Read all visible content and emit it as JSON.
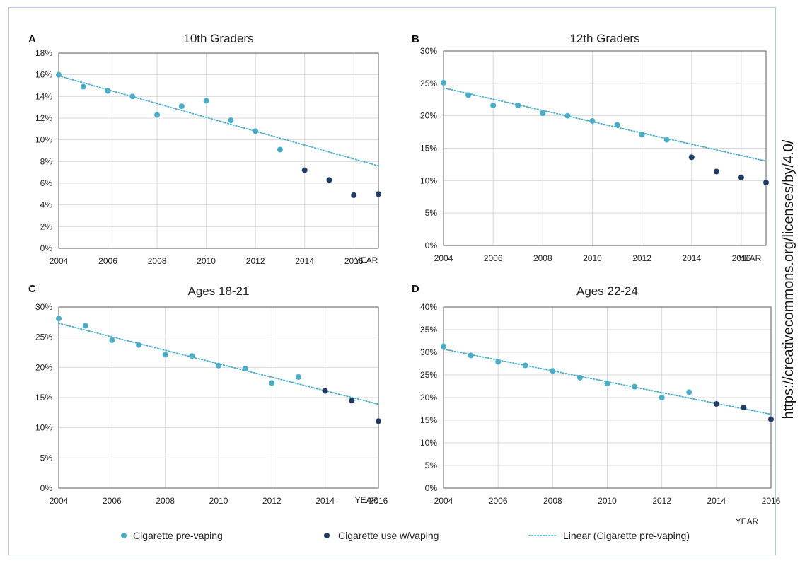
{
  "chart_data": [
    {
      "type": "scatter",
      "panel_label": "A",
      "title": "10th Graders",
      "xlabel": "YEAR",
      "ylabel": "",
      "xlim": [
        2004,
        2017
      ],
      "ylim": [
        0,
        18
      ],
      "x_ticks": [
        "2004",
        "2006",
        "2008",
        "2010",
        "2012",
        "2014",
        "2016"
      ],
      "y_ticks": [
        "0%",
        "2%",
        "4%",
        "6%",
        "8%",
        "10%",
        "12%",
        "14%",
        "16%",
        "18%"
      ],
      "grid": true,
      "series": [
        {
          "name": "Cigarette pre-vaping",
          "color": "#4bacc6",
          "x": [
            2004,
            2005,
            2006,
            2007,
            2008,
            2009,
            2010,
            2011,
            2012,
            2013
          ],
          "y": [
            16.0,
            14.9,
            14.5,
            14.0,
            12.3,
            13.1,
            13.6,
            11.8,
            10.8,
            9.1
          ]
        },
        {
          "name": "Cigarette use w/vaping",
          "color": "#1f3b63",
          "x": [
            2014,
            2015,
            2016,
            2017
          ],
          "y": [
            7.2,
            6.3,
            4.9,
            5.0
          ]
        }
      ],
      "trendline": {
        "name": "Linear (Cigarette pre-vaping)",
        "color": "#4bacc6",
        "x": [
          2004,
          2017
        ],
        "y": [
          15.9,
          7.6
        ]
      }
    },
    {
      "type": "scatter",
      "panel_label": "B",
      "title": "12th Graders",
      "xlabel": "YEAR",
      "ylabel": "",
      "xlim": [
        2004,
        2017
      ],
      "ylim": [
        0,
        30
      ],
      "x_ticks": [
        "2004",
        "2006",
        "2008",
        "2010",
        "2012",
        "2014",
        "2016"
      ],
      "y_ticks": [
        "0%",
        "5%",
        "10%",
        "15%",
        "20%",
        "25%",
        "30%"
      ],
      "grid": true,
      "series": [
        {
          "name": "Cigarette pre-vaping",
          "color": "#4bacc6",
          "x": [
            2004,
            2005,
            2006,
            2007,
            2008,
            2009,
            2010,
            2011,
            2012,
            2013
          ],
          "y": [
            25.1,
            23.2,
            21.6,
            21.6,
            20.4,
            20.0,
            19.2,
            18.6,
            17.1,
            16.3
          ]
        },
        {
          "name": "Cigarette use w/vaping",
          "color": "#1f3b63",
          "x": [
            2014,
            2015,
            2016,
            2017
          ],
          "y": [
            13.6,
            11.4,
            10.5,
            9.7
          ]
        }
      ],
      "trendline": {
        "name": "Linear (Cigarette pre-vaping)",
        "color": "#4bacc6",
        "x": [
          2004,
          2017
        ],
        "y": [
          24.3,
          13.0
        ]
      }
    },
    {
      "type": "scatter",
      "panel_label": "C",
      "title": "Ages 18-21",
      "xlabel": "YEAR",
      "ylabel": "",
      "xlim": [
        2004,
        2016
      ],
      "ylim": [
        0,
        30
      ],
      "x_ticks": [
        "2004",
        "2006",
        "2008",
        "2010",
        "2012",
        "2014",
        "2016"
      ],
      "y_ticks": [
        "0%",
        "5%",
        "10%",
        "15%",
        "20%",
        "25%",
        "30%"
      ],
      "grid": true,
      "series": [
        {
          "name": "Cigarette pre-vaping",
          "color": "#4bacc6",
          "x": [
            2004,
            2005,
            2006,
            2007,
            2008,
            2009,
            2010,
            2011,
            2012,
            2013
          ],
          "y": [
            28.1,
            26.9,
            24.5,
            23.7,
            22.1,
            21.9,
            20.3,
            19.8,
            17.4,
            18.4
          ]
        },
        {
          "name": "Cigarette use w/vaping",
          "color": "#1f3b63",
          "x": [
            2014,
            2015,
            2016
          ],
          "y": [
            16.1,
            14.5,
            11.1
          ]
        }
      ],
      "trendline": {
        "name": "Linear (Cigarette pre-vaping)",
        "color": "#4bacc6",
        "x": [
          2004,
          2016
        ],
        "y": [
          27.3,
          13.9
        ]
      }
    },
    {
      "type": "scatter",
      "panel_label": "D",
      "title": "Ages 22-24",
      "xlabel": "YEAR",
      "ylabel": "",
      "xlim": [
        2004,
        2016
      ],
      "ylim": [
        0,
        40
      ],
      "x_ticks": [
        "2004",
        "2006",
        "2008",
        "2010",
        "2012",
        "2014",
        "2016"
      ],
      "y_ticks": [
        "0%",
        "5%",
        "10%",
        "15%",
        "20%",
        "25%",
        "30%",
        "35%",
        "40%"
      ],
      "grid": true,
      "series": [
        {
          "name": "Cigarette pre-vaping",
          "color": "#4bacc6",
          "x": [
            2004,
            2005,
            2006,
            2007,
            2008,
            2009,
            2010,
            2011,
            2012,
            2013
          ],
          "y": [
            31.3,
            29.3,
            27.9,
            27.1,
            25.9,
            24.4,
            23.1,
            22.4,
            20.0,
            21.2
          ]
        },
        {
          "name": "Cigarette use w/vaping",
          "color": "#1f3b63",
          "x": [
            2014,
            2015,
            2016
          ],
          "y": [
            18.6,
            17.8,
            15.2
          ]
        }
      ],
      "trendline": {
        "name": "Linear (Cigarette pre-vaping)",
        "color": "#4bacc6",
        "x": [
          2004,
          2016
        ],
        "y": [
          30.7,
          16.3
        ]
      }
    }
  ],
  "legend": {
    "placement": "bottom",
    "items": [
      {
        "label": "Cigarette pre-vaping",
        "kind": "marker",
        "color": "#4bacc6"
      },
      {
        "label": "Cigarette use w/vaping",
        "kind": "marker",
        "color": "#1f3b63"
      },
      {
        "label": "Linear (Cigarette pre-vaping)",
        "kind": "dotted-line",
        "color": "#4bacc6"
      }
    ]
  },
  "license_text": "https://creativecommons.org/licenses/by/4.0/"
}
